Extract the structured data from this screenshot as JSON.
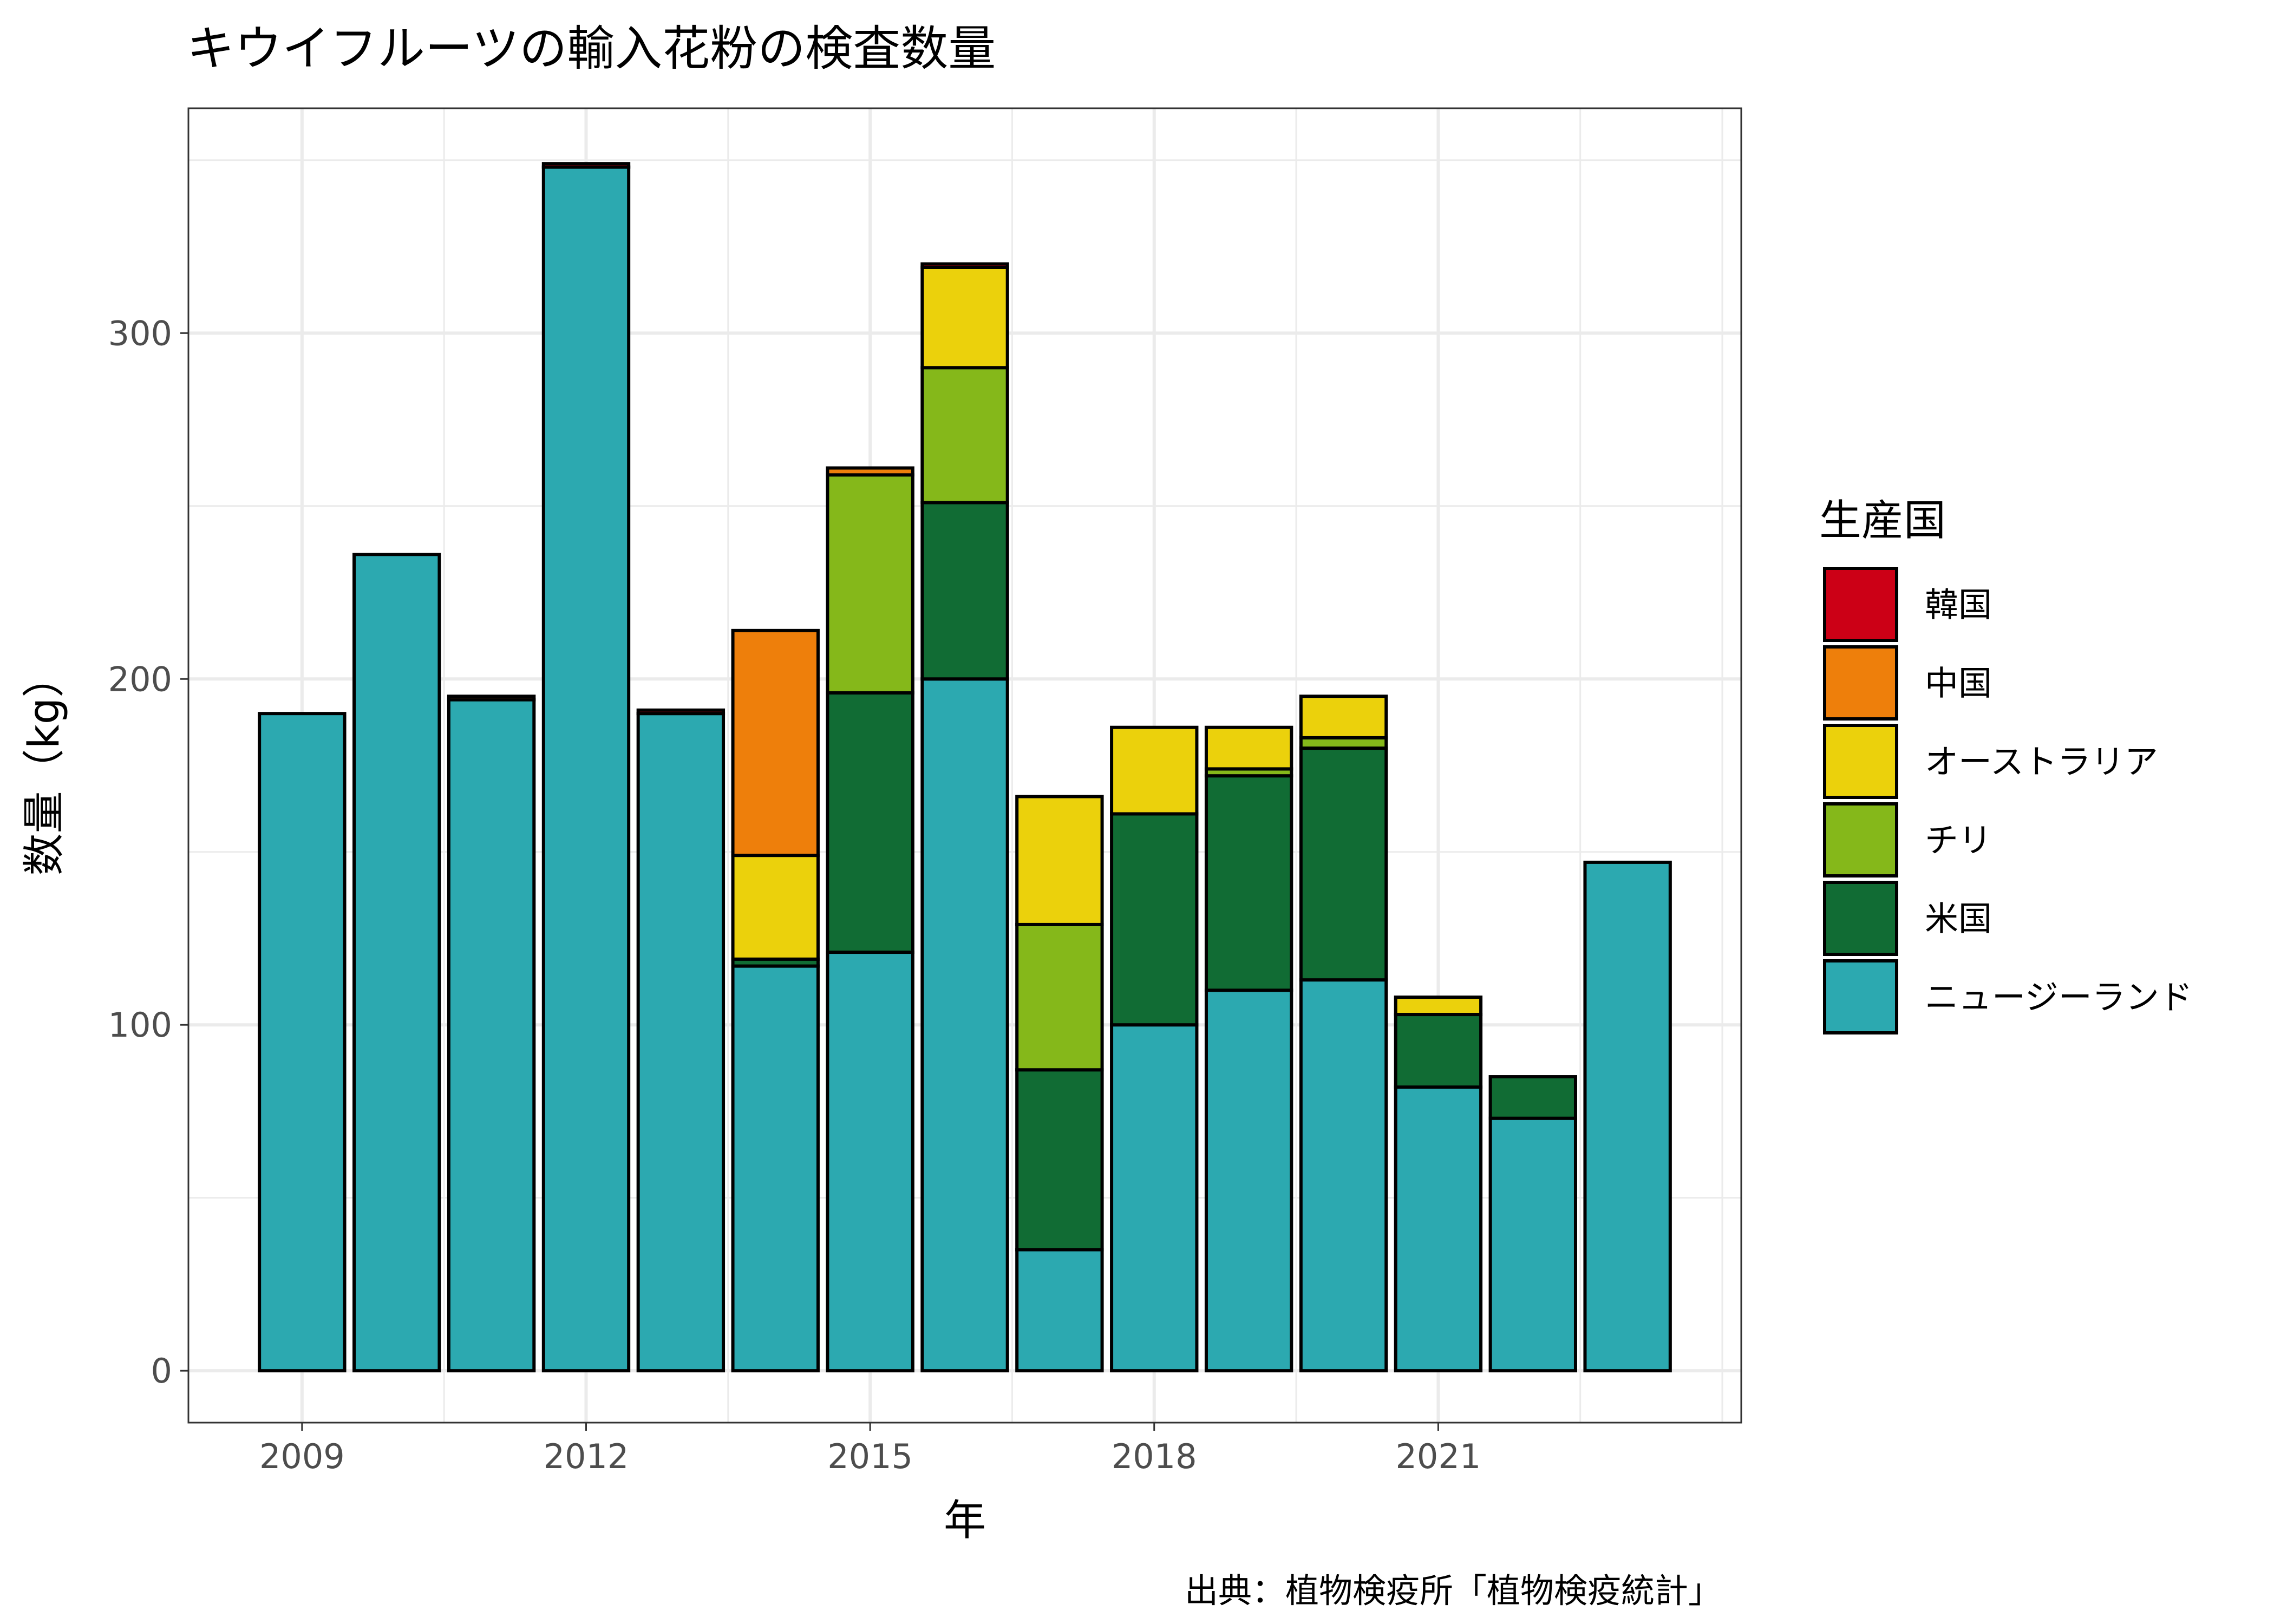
{
  "chart_data": {
    "type": "bar",
    "stacked": true,
    "title": "キウイフルーツの輸入花粉の検査数量",
    "xlabel": "年",
    "ylabel": "数量（kg）",
    "caption": "出典：植物検疫所「植物検疫統計」",
    "legend_title": "生産国",
    "legend_position": "right",
    "grid": true,
    "ylim": [
      -15,
      365
    ],
    "xlim": [
      2007.8,
      2024.2
    ],
    "x_ticks": [
      2009,
      2012,
      2015,
      2018,
      2021
    ],
    "y_ticks": [
      0,
      100,
      200,
      300
    ],
    "categories": [
      2009,
      2010,
      2011,
      2012,
      2013,
      2014,
      2015,
      2016,
      2017,
      2018,
      2019,
      2020,
      2021,
      2022,
      2023
    ],
    "series": [
      {
        "name": "ニュージーランド",
        "color": "#2CA9B0",
        "values": [
          190,
          236,
          194,
          348,
          190,
          117,
          121,
          200,
          35,
          100,
          110,
          113,
          82,
          73,
          147
        ]
      },
      {
        "name": "米国",
        "color": "#116C34",
        "values": [
          0,
          0,
          0,
          0,
          0,
          2,
          75,
          51,
          52,
          61,
          62,
          67,
          21,
          12,
          0
        ]
      },
      {
        "name": "チリ",
        "color": "#85B81A",
        "values": [
          0,
          0,
          0,
          0,
          0,
          0,
          63,
          39,
          42,
          0,
          2,
          3,
          0,
          0,
          0
        ]
      },
      {
        "name": "オーストラリア",
        "color": "#EBD10C",
        "values": [
          0,
          0,
          0,
          0,
          0,
          30,
          0,
          29,
          37,
          25,
          12,
          12,
          5,
          0,
          0
        ]
      },
      {
        "name": "中国",
        "color": "#EE7F0B",
        "values": [
          0,
          0,
          1,
          0,
          0,
          65,
          2,
          0,
          0,
          0,
          0,
          0,
          0,
          0,
          0
        ]
      },
      {
        "name": "韓国",
        "color": "#CC0016",
        "values": [
          0,
          0,
          0,
          1,
          1,
          0,
          0,
          1,
          0,
          0,
          0,
          0,
          0,
          0,
          0
        ]
      }
    ],
    "legend_order": [
      "韓国",
      "中国",
      "オーストラリア",
      "チリ",
      "米国",
      "ニュージーランド"
    ]
  }
}
